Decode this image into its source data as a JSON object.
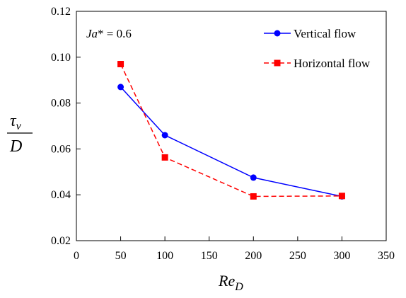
{
  "chart_data": {
    "type": "line",
    "annotation_text": "Ja* = 0.6",
    "xlabel": "Re_D",
    "ylabel": "τ_v / D",
    "xlim": [
      0,
      350
    ],
    "ylim": [
      0.02,
      0.12
    ],
    "x_ticks": [
      "0",
      "50",
      "100",
      "150",
      "200",
      "250",
      "300",
      "350"
    ],
    "y_ticks": [
      "0.02",
      "0.04",
      "0.06",
      "0.08",
      "0.10",
      "0.12"
    ],
    "legend_position": "top-right",
    "grid": false,
    "series": [
      {
        "name": "Vertical flow",
        "color": "#0000ff",
        "marker": "circle",
        "line": "solid",
        "x": [
          50,
          100,
          200,
          300
        ],
        "y": [
          0.087,
          0.066,
          0.0475,
          0.0393
        ]
      },
      {
        "name": "Horizontal flow",
        "color": "#ff0000",
        "marker": "square",
        "line": "dashed",
        "x": [
          50,
          100,
          200,
          300
        ],
        "y": [
          0.097,
          0.0563,
          0.0393,
          0.0395
        ]
      }
    ]
  }
}
